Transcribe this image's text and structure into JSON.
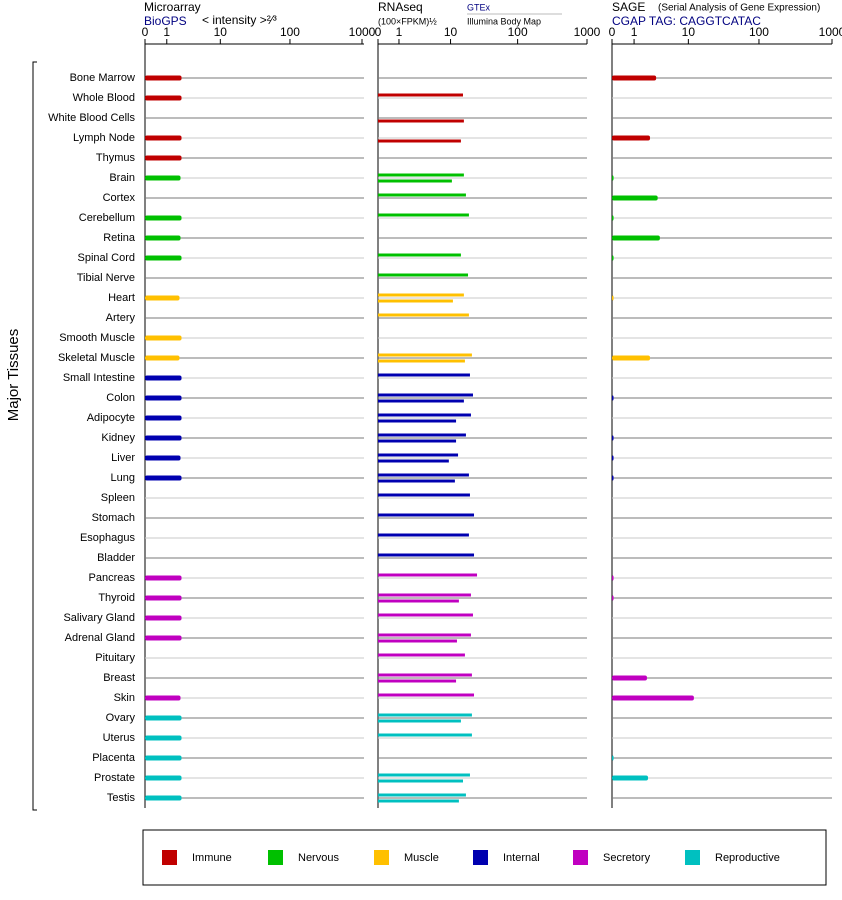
{
  "chart_data": {
    "type": "bar",
    "orientation": "horizontal",
    "y_axis_label": "Major Tissues",
    "categories": [
      "Bone Marrow",
      "Whole Blood",
      "White Blood Cells",
      "Lymph Node",
      "Thymus",
      "Brain",
      "Cortex",
      "Cerebellum",
      "Retina",
      "Spinal Cord",
      "Tibial Nerve",
      "Heart",
      "Artery",
      "Smooth Muscle",
      "Skeletal Muscle",
      "Small Intestine",
      "Colon",
      "Adipocyte",
      "Kidney",
      "Liver",
      "Lung",
      "Spleen",
      "Stomach",
      "Esophagus",
      "Bladder",
      "Pancreas",
      "Thyroid",
      "Salivary Gland",
      "Adrenal Gland",
      "Pituitary",
      "Breast",
      "Skin",
      "Ovary",
      "Uterus",
      "Placenta",
      "Prostate",
      "Testis"
    ],
    "category_colors": [
      "#c00000",
      "#c00000",
      "#c00000",
      "#c00000",
      "#c00000",
      "#00c000",
      "#00c000",
      "#00c000",
      "#00c000",
      "#00c000",
      "#00c000",
      "#ffc000",
      "#ffc000",
      "#ffc000",
      "#ffc000",
      "#0000b0",
      "#0000b0",
      "#0000b0",
      "#0000b0",
      "#0000b0",
      "#0000b0",
      "#0000b0",
      "#0000b0",
      "#0000b0",
      "#0000b0",
      "#c000c0",
      "#c000c0",
      "#c000c0",
      "#c000c0",
      "#c000c0",
      "#c000c0",
      "#c000c0",
      "#00c0c0",
      "#00c0c0",
      "#00c0c0",
      "#00c0c0",
      "#00c0c0"
    ],
    "legend": [
      {
        "name": "Immune",
        "color": "#c00000"
      },
      {
        "name": "Nervous",
        "color": "#00c000"
      },
      {
        "name": "Muscle",
        "color": "#ffc000"
      },
      {
        "name": "Internal",
        "color": "#0000b0"
      },
      {
        "name": "Secretory",
        "color": "#c000c0"
      },
      {
        "name": "Reproductive",
        "color": "#00c0c0"
      }
    ],
    "grid": true,
    "xscale": "log1p",
    "panels": [
      {
        "title": "Microarray",
        "subtitle": "BioGPS",
        "axis_label": "< intensity >²⁄³",
        "xlim": [
          0,
          1000
        ],
        "xticks": [
          0,
          1,
          10,
          100,
          1000
        ],
        "series": [
          {
            "values": [
              2.2,
              2.2,
              null,
              2.2,
              2.2,
              2.1,
              null,
              2.2,
              2.1,
              2.2,
              null,
              2.0,
              null,
              2.2,
              2.0,
              2.2,
              2.2,
              2.2,
              2.2,
              2.1,
              2.2,
              null,
              null,
              null,
              null,
              2.2,
              2.2,
              2.2,
              2.2,
              null,
              null,
              2.1,
              2.2,
              2.2,
              2.2,
              2.2,
              2.2
            ]
          }
        ]
      },
      {
        "title": "RNAseq",
        "axis_label": "(100×FPKM)½",
        "xlim": [
          0,
          1000
        ],
        "xticks": [
          0,
          1,
          10,
          100,
          1000
        ],
        "series": [
          {
            "name": "GTEx",
            "values": [
              null,
              15.6,
              null,
              null,
              null,
              16.1,
              17.3,
              19.2,
              null,
              14.5,
              18.6,
              16.1,
              19.2,
              null,
              21.3,
              19.9,
              22.1,
              20.6,
              17.3,
              13.1,
              19.2,
              19.9,
              22.9,
              19.2,
              22.9,
              25.4,
              20.6,
              22.1,
              20.6,
              16.7,
              21.3,
              22.9,
              21.3,
              21.3,
              null,
              19.9,
              17.3
            ]
          },
          {
            "name": "Illumina Body Map",
            "values": [
              null,
              null,
              16.1,
              14.5,
              null,
              10.5,
              null,
              null,
              null,
              null,
              null,
              10.9,
              null,
              null,
              16.7,
              null,
              16.1,
              12.2,
              12.2,
              9.4,
              11.7,
              null,
              null,
              null,
              null,
              null,
              13.5,
              null,
              12.6,
              null,
              12.2,
              null,
              14.5,
              null,
              null,
              15.6,
              13.5
            ]
          }
        ]
      },
      {
        "title": "SAGE",
        "note": "(Serial Analysis of Gene Expression)",
        "subtitle": "CGAP TAG: CAGGTCATAC",
        "xlim": [
          0,
          1000
        ],
        "xticks": [
          0,
          1,
          10,
          100,
          1000
        ],
        "series": [
          {
            "values": [
              3.0,
              null,
              null,
              2.3,
              null,
              0.05,
              3.2,
              0.05,
              3.5,
              0.05,
              null,
              0.05,
              null,
              null,
              2.3,
              null,
              0.05,
              null,
              0.05,
              0.05,
              0.05,
              null,
              null,
              null,
              null,
              0.05,
              0.05,
              null,
              null,
              null,
              2.0,
              12.1,
              null,
              null,
              0.05,
              2.1,
              null
            ]
          }
        ]
      }
    ]
  }
}
